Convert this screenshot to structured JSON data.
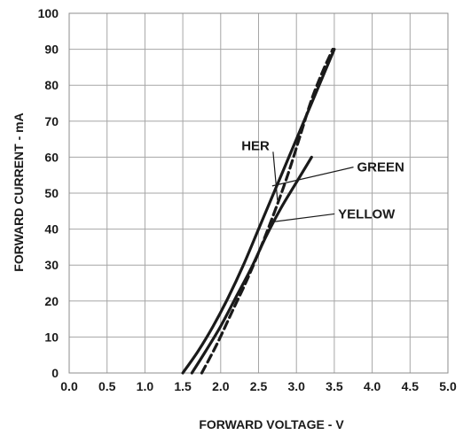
{
  "chart_data": {
    "type": "line",
    "xlabel": "FORWARD VOLTAGE - V",
    "ylabel": "FORWARD CURRENT - mA",
    "xlim": [
      0,
      5
    ],
    "ylim": [
      0,
      100
    ],
    "x_ticks": [
      "0.0",
      "0.5",
      "1.0",
      "1.5",
      "2.0",
      "2.5",
      "3.0",
      "3.5",
      "4.0",
      "4.5",
      "5.0"
    ],
    "y_ticks": [
      "0",
      "10",
      "20",
      "30",
      "40",
      "50",
      "60",
      "70",
      "80",
      "90",
      "100"
    ],
    "grid": true,
    "series": [
      {
        "name": "HER",
        "style": "solid",
        "color": "#1a1a1a",
        "points": [
          [
            1.5,
            0
          ],
          [
            1.7,
            6
          ],
          [
            1.9,
            13
          ],
          [
            2.1,
            21
          ],
          [
            2.3,
            30
          ],
          [
            2.5,
            40
          ],
          [
            2.7,
            50
          ],
          [
            2.9,
            60
          ],
          [
            3.1,
            70
          ],
          [
            3.3,
            80
          ],
          [
            3.5,
            90
          ]
        ]
      },
      {
        "name": "GREEN",
        "style": "dashed",
        "color": "#1a1a1a",
        "points": [
          [
            1.75,
            0
          ],
          [
            1.95,
            8
          ],
          [
            2.15,
            17
          ],
          [
            2.35,
            26
          ],
          [
            2.55,
            36
          ],
          [
            2.75,
            47
          ],
          [
            2.9,
            56
          ],
          [
            3.05,
            66
          ],
          [
            3.2,
            76
          ],
          [
            3.35,
            84
          ],
          [
            3.48,
            90
          ]
        ]
      },
      {
        "name": "YELLOW",
        "style": "solid",
        "color": "#1a1a1a",
        "points": [
          [
            1.62,
            0
          ],
          [
            1.8,
            6
          ],
          [
            2.0,
            13
          ],
          [
            2.2,
            21
          ],
          [
            2.4,
            29
          ],
          [
            2.6,
            38
          ],
          [
            2.8,
            46
          ],
          [
            3.0,
            53
          ],
          [
            3.2,
            60
          ]
        ]
      }
    ],
    "annotations": [
      {
        "text": "HER",
        "series": "HER",
        "anchor": [
          2.75,
          48
        ],
        "label_pos": "upper-left"
      },
      {
        "text": "GREEN",
        "series": "GREEN",
        "anchor": [
          2.68,
          52
        ],
        "label_pos": "right"
      },
      {
        "text": "YELLOW",
        "series": "YELLOW",
        "anchor": [
          2.68,
          42
        ],
        "label_pos": "right"
      }
    ]
  }
}
